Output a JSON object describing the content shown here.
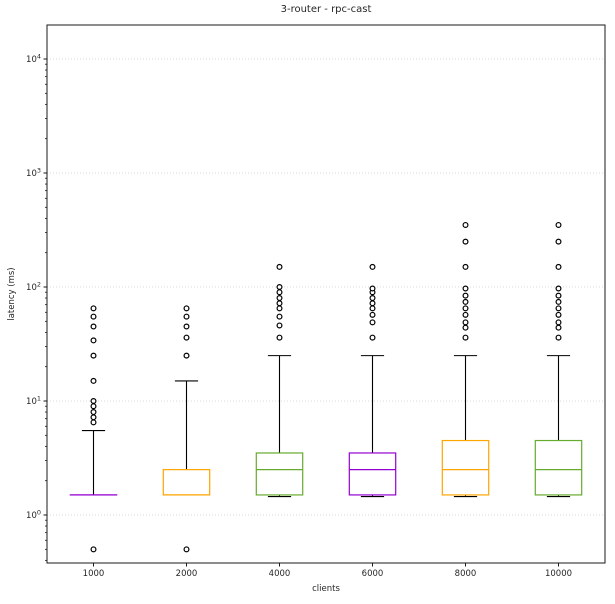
{
  "figure": {
    "title": "3-router - rpc-cast"
  },
  "chart_data": {
    "type": "boxplot",
    "title": "3-router - rpc-cast",
    "xlabel": "clients",
    "ylabel": "latency (ms)",
    "yscale": "log",
    "ylim": [
      0.38,
      20000
    ],
    "grid": "horizontal-major-dotted",
    "legend": false,
    "yticks": [
      {
        "value": 1,
        "base": "10",
        "exp": "0"
      },
      {
        "value": 10,
        "base": "10",
        "exp": "1"
      },
      {
        "value": 100,
        "base": "10",
        "exp": "2"
      },
      {
        "value": 1000,
        "base": "10",
        "exp": "3"
      },
      {
        "value": 10000,
        "base": "10",
        "exp": "4"
      }
    ],
    "categories": [
      "1000",
      "2000",
      "4000",
      "6000",
      "8000",
      "10000"
    ],
    "boxes": [
      {
        "label": "1000",
        "color_name": "purple",
        "whisker_low": 1.5,
        "q1": 1.5,
        "median": 1.5,
        "q3": 1.5,
        "whisker_high": 5.5,
        "outliers": [
          0.5,
          6.5,
          7.2,
          8,
          9,
          10,
          15,
          25,
          34,
          45,
          55,
          65
        ]
      },
      {
        "label": "2000",
        "color_name": "orange",
        "whisker_low": 1.5,
        "q1": 1.5,
        "median": 1.5,
        "q3": 2.5,
        "whisker_high": 15,
        "outliers": [
          0.5,
          25,
          36,
          45,
          55,
          65
        ]
      },
      {
        "label": "4000",
        "color_name": "green",
        "whisker_low": 1.45,
        "q1": 1.5,
        "median": 2.5,
        "q3": 3.5,
        "whisker_high": 25,
        "outliers": [
          36,
          46,
          55,
          65,
          72,
          80,
          90,
          100,
          150
        ]
      },
      {
        "label": "6000",
        "color_name": "purple",
        "whisker_low": 1.45,
        "q1": 1.5,
        "median": 2.5,
        "q3": 3.5,
        "whisker_high": 25,
        "outliers": [
          36,
          49,
          57,
          65,
          72,
          80,
          90,
          97,
          150
        ]
      },
      {
        "label": "8000",
        "color_name": "orange",
        "whisker_low": 1.45,
        "q1": 1.5,
        "median": 2.5,
        "q3": 4.5,
        "whisker_high": 25,
        "outliers": [
          36,
          44,
          49,
          57,
          65,
          74,
          84,
          97,
          150,
          250,
          350
        ]
      },
      {
        "label": "10000",
        "color_name": "green",
        "whisker_low": 1.45,
        "q1": 1.5,
        "median": 2.5,
        "q3": 4.5,
        "whisker_high": 25,
        "outliers": [
          36,
          44,
          49,
          57,
          65,
          74,
          84,
          97,
          150,
          250,
          350
        ]
      }
    ]
  },
  "colors": {
    "purple": "#9400d3",
    "orange": "#ffa500",
    "green": "#66ab2d",
    "whisker": "#000000",
    "outlier_edge": "#000000",
    "spine": "#1a1a1a",
    "grid": "#d8d8d8",
    "text": "#262626"
  }
}
